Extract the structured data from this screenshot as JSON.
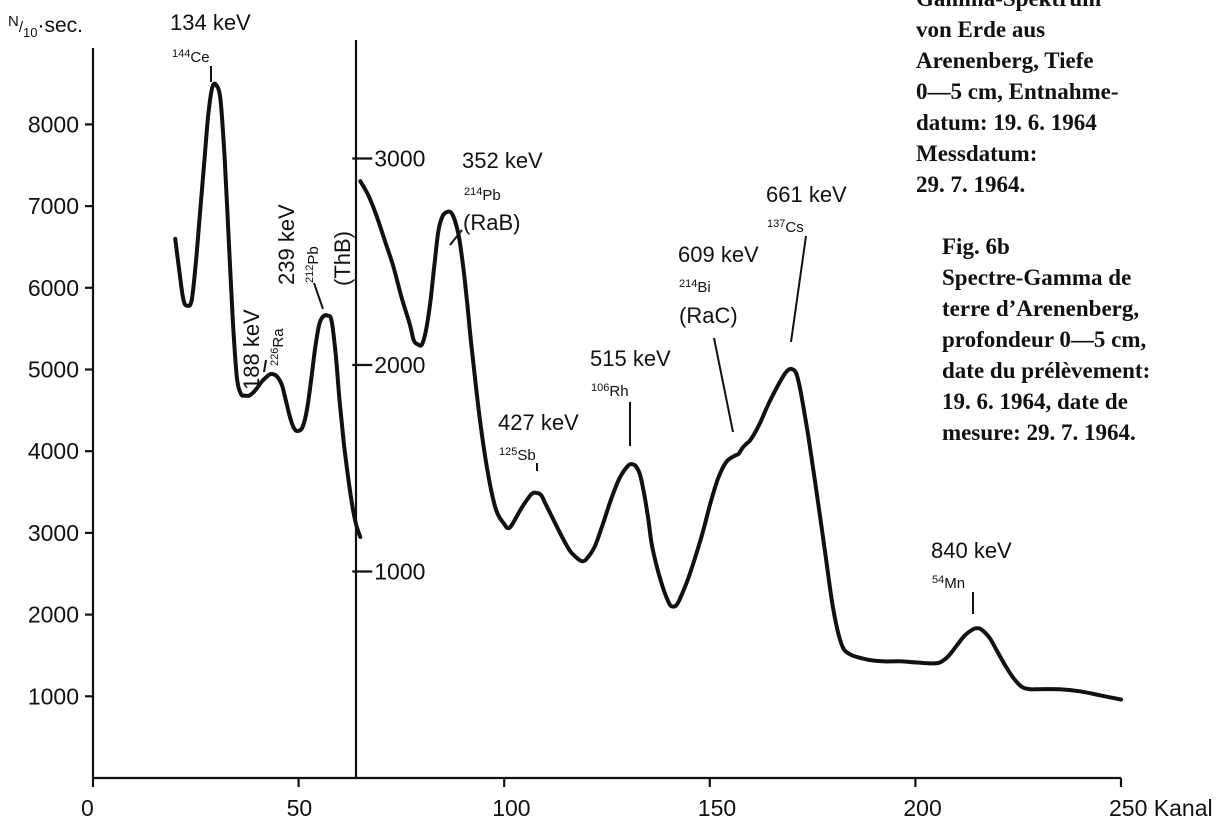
{
  "chart_data": {
    "type": "line",
    "title": "",
    "ylabel": "N/10 sec.",
    "xlabel": "Kanal",
    "xlim": [
      0,
      250
    ],
    "ylim_left": [
      0,
      9000
    ],
    "ylim_right": [
      0,
      3500
    ],
    "x_ticks": [
      0,
      50,
      100,
      150,
      200,
      250
    ],
    "x_tick_labels": [
      "0",
      "50",
      "100",
      "150",
      "200",
      "250 Kanal"
    ],
    "y_ticks_left": [
      1000,
      2000,
      3000,
      4000,
      5000,
      6000,
      7000,
      8000
    ],
    "y_ticks_left_labels": [
      "1000",
      "2000",
      "3000",
      "4000",
      "5000",
      "6000",
      "7000",
      "8000"
    ],
    "y_ticks_right": [
      1000,
      2000,
      3000
    ],
    "y_ticks_right_labels": [
      "1000",
      "2000",
      "3000"
    ],
    "axis_break_x": 65,
    "series": [
      {
        "axis": "left",
        "points": [
          [
            20,
            6600
          ],
          [
            21,
            6200
          ],
          [
            22,
            5850
          ],
          [
            23,
            5780
          ],
          [
            24,
            5850
          ],
          [
            25,
            6300
          ],
          [
            26,
            6900
          ],
          [
            27,
            7500
          ],
          [
            28,
            8100
          ],
          [
            29,
            8450
          ],
          [
            30,
            8480
          ],
          [
            31,
            8300
          ],
          [
            32,
            7600
          ],
          [
            33,
            6600
          ],
          [
            34,
            5600
          ],
          [
            35,
            4900
          ],
          [
            36,
            4700
          ],
          [
            37,
            4680
          ],
          [
            38,
            4680
          ],
          [
            39,
            4720
          ],
          [
            40,
            4780
          ],
          [
            41,
            4850
          ],
          [
            42,
            4900
          ],
          [
            43,
            4940
          ],
          [
            44,
            4940
          ],
          [
            45,
            4900
          ],
          [
            46,
            4800
          ],
          [
            47,
            4600
          ],
          [
            48,
            4400
          ],
          [
            49,
            4270
          ],
          [
            50,
            4250
          ],
          [
            51,
            4300
          ],
          [
            52,
            4500
          ],
          [
            53,
            4850
          ],
          [
            54,
            5250
          ],
          [
            55,
            5550
          ],
          [
            56,
            5650
          ],
          [
            57,
            5660
          ],
          [
            58,
            5600
          ],
          [
            59,
            5200
          ],
          [
            60,
            4600
          ],
          [
            61,
            4100
          ],
          [
            62,
            3700
          ],
          [
            63,
            3350
          ],
          [
            64,
            3100
          ],
          [
            65,
            2950
          ]
        ]
      },
      {
        "axis": "right",
        "points": [
          [
            65,
            2890
          ],
          [
            67,
            2820
          ],
          [
            69,
            2720
          ],
          [
            71,
            2600
          ],
          [
            73,
            2480
          ],
          [
            75,
            2330
          ],
          [
            77,
            2200
          ],
          [
            78,
            2120
          ],
          [
            79,
            2100
          ],
          [
            80,
            2100
          ],
          [
            81,
            2170
          ],
          [
            82,
            2300
          ],
          [
            83,
            2480
          ],
          [
            84,
            2650
          ],
          [
            85,
            2720
          ],
          [
            86,
            2740
          ],
          [
            87,
            2740
          ],
          [
            88,
            2700
          ],
          [
            89,
            2620
          ],
          [
            90,
            2480
          ],
          [
            91,
            2300
          ],
          [
            92,
            2100
          ],
          [
            94,
            1750
          ],
          [
            96,
            1480
          ],
          [
            98,
            1300
          ],
          [
            100,
            1230
          ],
          [
            101,
            1210
          ],
          [
            102,
            1230
          ],
          [
            104,
            1300
          ],
          [
            106,
            1360
          ],
          [
            107,
            1380
          ],
          [
            108,
            1380
          ],
          [
            109,
            1370
          ],
          [
            110,
            1330
          ],
          [
            112,
            1250
          ],
          [
            114,
            1170
          ],
          [
            116,
            1100
          ],
          [
            118,
            1060
          ],
          [
            119,
            1050
          ],
          [
            120,
            1060
          ],
          [
            122,
            1120
          ],
          [
            124,
            1230
          ],
          [
            126,
            1350
          ],
          [
            128,
            1450
          ],
          [
            130,
            1510
          ],
          [
            131,
            1520
          ],
          [
            132,
            1510
          ],
          [
            133,
            1470
          ],
          [
            134,
            1380
          ],
          [
            135,
            1260
          ],
          [
            136,
            1120
          ],
          [
            138,
            960
          ],
          [
            140,
            850
          ],
          [
            141,
            830
          ],
          [
            142,
            840
          ],
          [
            143,
            880
          ],
          [
            145,
            980
          ],
          [
            148,
            1170
          ],
          [
            150,
            1320
          ],
          [
            152,
            1450
          ],
          [
            154,
            1530
          ],
          [
            156,
            1560
          ],
          [
            157,
            1570
          ],
          [
            158,
            1600
          ],
          [
            159,
            1620
          ],
          [
            160,
            1640
          ],
          [
            162,
            1710
          ],
          [
            164,
            1800
          ],
          [
            166,
            1880
          ],
          [
            168,
            1950
          ],
          [
            169,
            1975
          ],
          [
            170,
            1980
          ],
          [
            171,
            1960
          ],
          [
            172,
            1880
          ],
          [
            174,
            1650
          ],
          [
            176,
            1380
          ],
          [
            178,
            1100
          ],
          [
            180,
            820
          ],
          [
            182,
            650
          ],
          [
            184,
            600
          ],
          [
            188,
            575
          ],
          [
            192,
            565
          ],
          [
            196,
            565
          ],
          [
            200,
            560
          ],
          [
            204,
            555
          ],
          [
            206,
            560
          ],
          [
            208,
            590
          ],
          [
            210,
            640
          ],
          [
            212,
            690
          ],
          [
            214,
            720
          ],
          [
            215,
            725
          ],
          [
            216,
            720
          ],
          [
            218,
            680
          ],
          [
            220,
            610
          ],
          [
            222,
            540
          ],
          [
            224,
            480
          ],
          [
            226,
            440
          ],
          [
            228,
            430
          ],
          [
            230,
            430
          ],
          [
            235,
            430
          ],
          [
            240,
            420
          ],
          [
            245,
            400
          ],
          [
            250,
            380
          ]
        ]
      }
    ],
    "annotations": [
      {
        "energy": "134 keV",
        "mass": "144",
        "element": "Ce",
        "extra": ""
      },
      {
        "energy": "188 keV",
        "mass": "226",
        "element": "Ra",
        "extra": ""
      },
      {
        "energy": "239 keV",
        "mass": "212",
        "element": "Pb",
        "extra": "(ThB)"
      },
      {
        "energy": "352 keV",
        "mass": "214",
        "element": "Pb",
        "extra": "(RaB)"
      },
      {
        "energy": "427 keV",
        "mass": "125",
        "element": "Sb",
        "extra": ""
      },
      {
        "energy": "515 keV",
        "mass": "106",
        "element": "Rh",
        "extra": ""
      },
      {
        "energy": "609 keV",
        "mass": "214",
        "element": "Bi",
        "extra": "(RaC)"
      },
      {
        "energy": "661 keV",
        "mass": "137",
        "element": "Cs",
        "extra": ""
      },
      {
        "energy": "840 keV",
        "mass": "54",
        "element": "Mn",
        "extra": ""
      }
    ]
  },
  "caption_de": [
    "Gamma-Spektrum",
    "von Erde aus",
    "Arenenberg, Tiefe",
    "0—5 cm, Entnahme-",
    "datum: 19. 6. 1964",
    "Messdatum:",
    "29. 7. 1964."
  ],
  "caption_fr": [
    "Fig. 6b",
    "Spectre-Gamma de",
    "terre d’Arenenberg,",
    "profondeur 0—5 cm,",
    "date du prélèvement:",
    "19. 6. 1964, date de",
    "mesure: 29. 7. 1964."
  ]
}
